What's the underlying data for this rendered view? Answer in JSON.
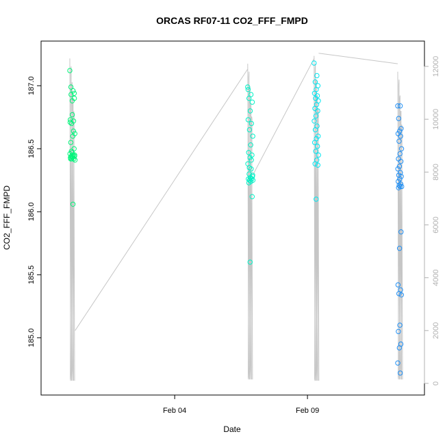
{
  "chart_data": {
    "type": "scatter",
    "title": "ORCAS RF07-11 CO2_FFF_FMPD",
    "xlabel": "Date",
    "ylabel": "CO2_FFF_FMPD",
    "x_ticks": [
      "Feb 04",
      "Feb 09"
    ],
    "x_tick_days": [
      4,
      9
    ],
    "xlim_days": [
      -0.8,
      13.2
    ],
    "ylim": [
      184.6,
      187.3
    ],
    "y_ticks": [
      185.0,
      185.5,
      186.0,
      186.5,
      187.0
    ],
    "y2_ticks": [
      0,
      2000,
      4000,
      6000,
      8000,
      10000,
      12000
    ],
    "y2lim": [
      0,
      12600
    ],
    "grid": false,
    "legend": "none",
    "flights": [
      {
        "x_start": 0.05,
        "x_end": 0.25,
        "color": "#00f57a",
        "co2": [
          187.12,
          186.96,
          186.93,
          186.9,
          186.77,
          186.73,
          186.72,
          186.7,
          186.62,
          186.6,
          186.55,
          186.5,
          186.47,
          186.46,
          186.45,
          186.44,
          186.44,
          186.43,
          186.43,
          186.42,
          186.42,
          186.41,
          186.06,
          186.99,
          186.94,
          186.88,
          186.71,
          186.64,
          186.48,
          186.45,
          186.44,
          186.42
        ]
      },
      {
        "x_start": 6.75,
        "x_end": 6.95,
        "color": "#00f2c7",
        "co2": [
          186.99,
          186.93,
          186.9,
          186.87,
          186.8,
          186.73,
          186.7,
          186.65,
          186.6,
          186.53,
          186.47,
          186.45,
          186.43,
          186.38,
          186.34,
          186.3,
          186.28,
          186.27,
          186.26,
          186.26,
          186.25,
          186.25,
          186.24,
          186.23,
          186.12,
          185.6,
          186.97,
          186.41,
          186.35,
          186.29,
          186.27
        ]
      },
      {
        "x_start": 9.25,
        "x_end": 9.42,
        "color": "#00e6f0",
        "co2": [
          187.18,
          187.08,
          187.03,
          187.0,
          186.97,
          186.94,
          186.92,
          186.9,
          186.88,
          186.85,
          186.82,
          186.8,
          186.76,
          186.72,
          186.68,
          186.65,
          186.6,
          186.58,
          186.55,
          186.52,
          186.48,
          186.45,
          186.41,
          186.38,
          186.37,
          186.1
        ]
      },
      {
        "x_start": 12.4,
        "x_end": 12.55,
        "color": "#1f8ff5",
        "co2": [
          186.84,
          186.84,
          186.74,
          186.66,
          186.64,
          186.62,
          186.6,
          186.56,
          186.5,
          186.46,
          186.42,
          186.4,
          186.36,
          186.34,
          186.31,
          186.29,
          186.28,
          186.26,
          186.24,
          186.22,
          186.21,
          186.2,
          186.2,
          186.19,
          185.84,
          185.71,
          185.42,
          185.38,
          185.35,
          185.34,
          185.1,
          185.05,
          184.95,
          184.92,
          184.8,
          184.72
        ]
      }
    ],
    "altitude_series": {
      "name": "altitude",
      "color": "#c6c6c6",
      "segments": [
        {
          "x": [
            0.05,
            0.2
          ],
          "y2_range": [
            100,
            12300
          ]
        },
        {
          "x": [
            6.75,
            6.9
          ],
          "y2_range": [
            150,
            12100
          ]
        },
        {
          "x": [
            9.25,
            9.4
          ],
          "y2_range": [
            100,
            12400
          ]
        },
        {
          "x": [
            12.4,
            12.55
          ],
          "y2_range": [
            150,
            11800
          ]
        }
      ],
      "transits": [
        {
          "x": [
            0.25,
            6.75
          ],
          "y2": [
            2000,
            11900
          ]
        },
        {
          "x": [
            6.95,
            9.25
          ],
          "y2": [
            7900,
            12300
          ]
        },
        {
          "x": [
            9.42,
            12.4
          ],
          "y2": [
            12500,
            12100
          ]
        }
      ]
    }
  }
}
